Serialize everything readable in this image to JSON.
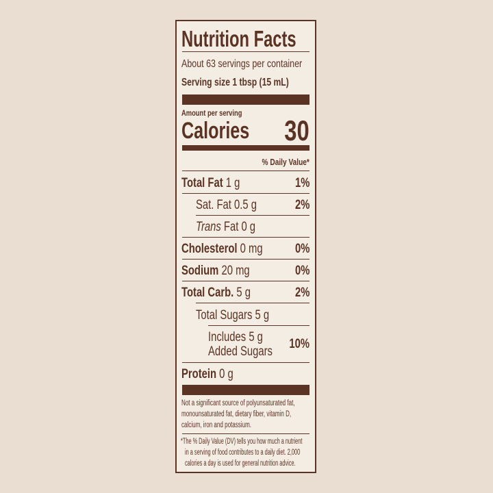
{
  "header": {
    "title": "Nutrition Facts",
    "servings": "About 63 servings per container",
    "serving_size": "Serving size 1 tbsp (15 mL)"
  },
  "calories": {
    "label": "Amount per serving",
    "name": "Calories",
    "value": "30"
  },
  "dv_header": "% Daily Value*",
  "rows": [
    {
      "name": "Total Fat",
      "amount": "1 g",
      "dv": "1%"
    },
    {
      "name": "Sat. Fat",
      "amount": "0.5 g",
      "dv": "2%"
    },
    {
      "name_italic": "Trans",
      "name": "Fat",
      "amount": "0 g"
    },
    {
      "name": "Cholesterol",
      "amount": "0 mg",
      "dv": "0%"
    },
    {
      "name": "Sodium",
      "amount": "20 mg",
      "dv": "0%"
    },
    {
      "name": "Total Carb.",
      "amount": "5 g",
      "dv": "2%"
    },
    {
      "name": "Total Sugars",
      "amount": "5 g"
    },
    {
      "lines": [
        "Includes 5 g",
        "Added Sugars"
      ],
      "dv": "10%"
    },
    {
      "name": "Protein",
      "amount": "0 g"
    }
  ],
  "footnotes": [
    {
      "lines": [
        "Not a significant source of polyunsaturated fat,",
        "monounsaturated fat, dietary fiber, vitamin D,",
        "calcium, iron and potassium."
      ]
    },
    {
      "lines": [
        "*The % Daily Value (DV) tells you how much a nutrient",
        "in a serving of food contributes to a daily diet. 2,000",
        "calories a day is used for general nutrition advice."
      ]
    }
  ]
}
